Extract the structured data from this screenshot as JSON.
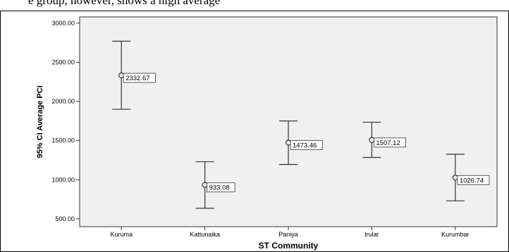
{
  "header_fragment": "e group, however, shows a high average",
  "chart_data": {
    "type": "errorbar",
    "categories": [
      "Kuruma",
      "Kattunaika",
      "Paniya",
      "Irular",
      "Kurumbar"
    ],
    "series": [
      {
        "means": [
          2332.67,
          933.08,
          1473.46,
          1507.12,
          1026.74
        ],
        "mean_labels": [
          "2332.67",
          "933.08",
          "1473.46",
          "1507.12",
          "1026.74"
        ],
        "ci_upper": [
          2770,
          1230,
          1750,
          1735,
          1325
        ],
        "ci_lower": [
          1900,
          635,
          1195,
          1285,
          730
        ]
      }
    ],
    "xlabel": "ST Community",
    "ylabel": "95% CI Average PCI",
    "yticks": [
      500,
      1000,
      1500,
      2000,
      2500,
      3000
    ],
    "ytick_labels": [
      "500.00",
      "1000.00",
      "1500.00",
      "2000.00",
      "2500.00",
      "3000.00"
    ],
    "ylim": [
      400,
      3080
    ],
    "grid": false,
    "colors": {
      "plot_background": "#f0f0f0",
      "marks": "#333333"
    }
  }
}
